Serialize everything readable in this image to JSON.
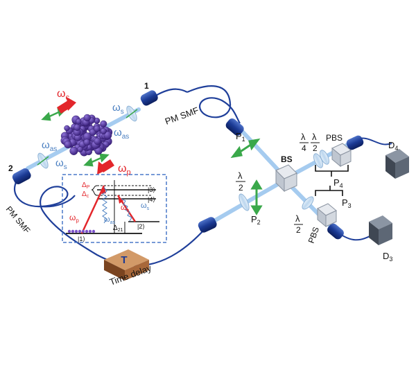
{
  "labels": {
    "port1": "1",
    "port2": "2",
    "fiber_top": "PM SMF",
    "fiber_left": "PM SMF",
    "time_delay": "Time delay",
    "delay_symbol": "T",
    "bs": "BS",
    "pbs_top": "PBS",
    "pbs_bottom": "PBS",
    "d4": "D",
    "d4_sub": "4",
    "d3": "D",
    "d3_sub": "3",
    "p1": "P",
    "p1_sub": "1",
    "p2": "P",
    "p2_sub": "2",
    "p3": "P",
    "p3_sub": "3",
    "p4": "P",
    "p4_sub": "4",
    "lambda": "λ",
    "two": "2",
    "four": "4",
    "omega": "ω",
    "sub_c": "c",
    "sub_p": "p",
    "sub_s": "s",
    "sub_as": "as",
    "level1": "|1⟩",
    "level2": "|2⟩",
    "level3": "|3⟩",
    "level4": "|4⟩",
    "delta": "Δ",
    "delta_p_sub": "P",
    "delta_c_sub": "c",
    "delta_21_sub": "21"
  },
  "colors": {
    "fiber": "#1f3f9a",
    "beam": "#9cc6ee",
    "pump": "#e3262b",
    "signal_text": "#4a7fc1",
    "arrow_green": "#3aa84a",
    "cloud": "#5b3da8",
    "detector": "#55606e",
    "delay_box": "#a8683a",
    "inset_border": "#4a78c8"
  }
}
